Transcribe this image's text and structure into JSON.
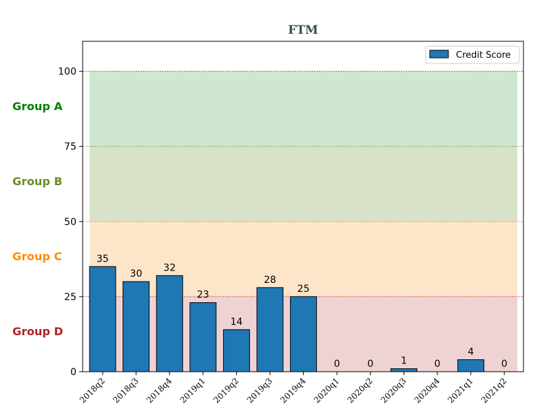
{
  "chart_data": {
    "type": "bar",
    "title": "FTM",
    "title_color": "#2f4f4f",
    "categories": [
      "2018q2",
      "2018q3",
      "2018q4",
      "2019q1",
      "2019q2",
      "2019q3",
      "2019q4",
      "2020q1",
      "2020q2",
      "2020q3",
      "2020q4",
      "2021q1",
      "2021q2"
    ],
    "series": [
      {
        "name": "Credit Score",
        "values": [
          35,
          30,
          32,
          23,
          14,
          28,
          25,
          0,
          0,
          1,
          0,
          4,
          0
        ],
        "color": "#1f77b4"
      }
    ],
    "ylim": [
      0,
      110
    ],
    "yticks": [
      0,
      25,
      50,
      75,
      100
    ],
    "xlabel": "",
    "ylabel": "",
    "legend_position": "top-right",
    "bands": [
      {
        "label": "Group A",
        "from": 75,
        "to": 100,
        "fill": "#cfe6cf",
        "color": "#008000"
      },
      {
        "label": "Group B",
        "from": 50,
        "to": 75,
        "fill": "#d8e2c8",
        "color": "#6b8e23"
      },
      {
        "label": "Group C",
        "from": 25,
        "to": 50,
        "fill": "#fde5c9",
        "color": "#ff8c00"
      },
      {
        "label": "Group D",
        "from": 0,
        "to": 25,
        "fill": "#efd3d3",
        "color": "#b22222"
      }
    ]
  }
}
